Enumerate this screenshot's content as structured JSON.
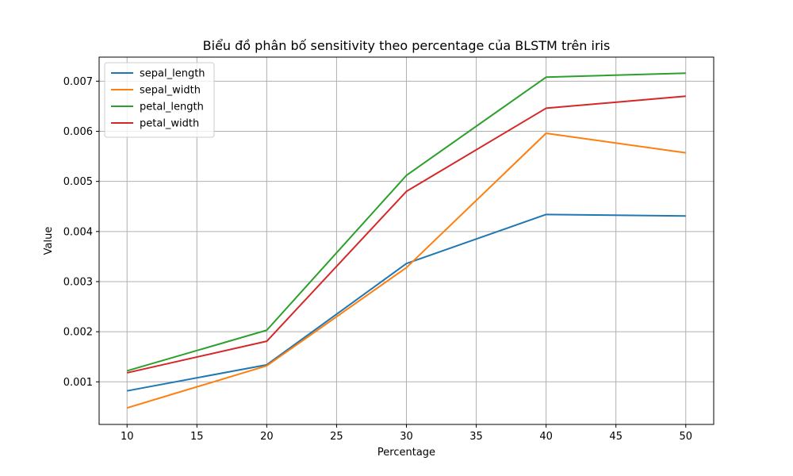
{
  "chart_data": {
    "type": "line",
    "title": "Biểu đồ phân bố sensitivity theo percentage của BLSTM trên iris",
    "xlabel": "Percentage",
    "ylabel": "Value",
    "x": [
      10,
      20,
      30,
      40,
      50
    ],
    "xlim": [
      8,
      52
    ],
    "ylim": [
      0.00015,
      0.00748
    ],
    "xticks": [
      10,
      15,
      20,
      25,
      30,
      35,
      40,
      45,
      50
    ],
    "xtick_labels": [
      "10",
      "15",
      "20",
      "25",
      "30",
      "35",
      "40",
      "45",
      "50"
    ],
    "yticks": [
      0.001,
      0.002,
      0.003,
      0.004,
      0.005,
      0.006,
      0.007
    ],
    "ytick_labels": [
      "0.001",
      "0.002",
      "0.003",
      "0.004",
      "0.005",
      "0.006",
      "0.007"
    ],
    "grid": true,
    "legend_position": "top-left",
    "series": [
      {
        "name": "sepal_length",
        "color": "#1f77b4",
        "values": [
          0.00082,
          0.00134,
          0.00336,
          0.00434,
          0.00431
        ]
      },
      {
        "name": "sepal_width",
        "color": "#ff7f0e",
        "values": [
          0.00048,
          0.00132,
          0.00328,
          0.00596,
          0.00557
        ]
      },
      {
        "name": "petal_length",
        "color": "#2ca02c",
        "values": [
          0.00122,
          0.00203,
          0.00512,
          0.00708,
          0.00716
        ]
      },
      {
        "name": "petal_width",
        "color": "#d62728",
        "values": [
          0.00118,
          0.00181,
          0.0048,
          0.00646,
          0.0067
        ]
      }
    ]
  }
}
